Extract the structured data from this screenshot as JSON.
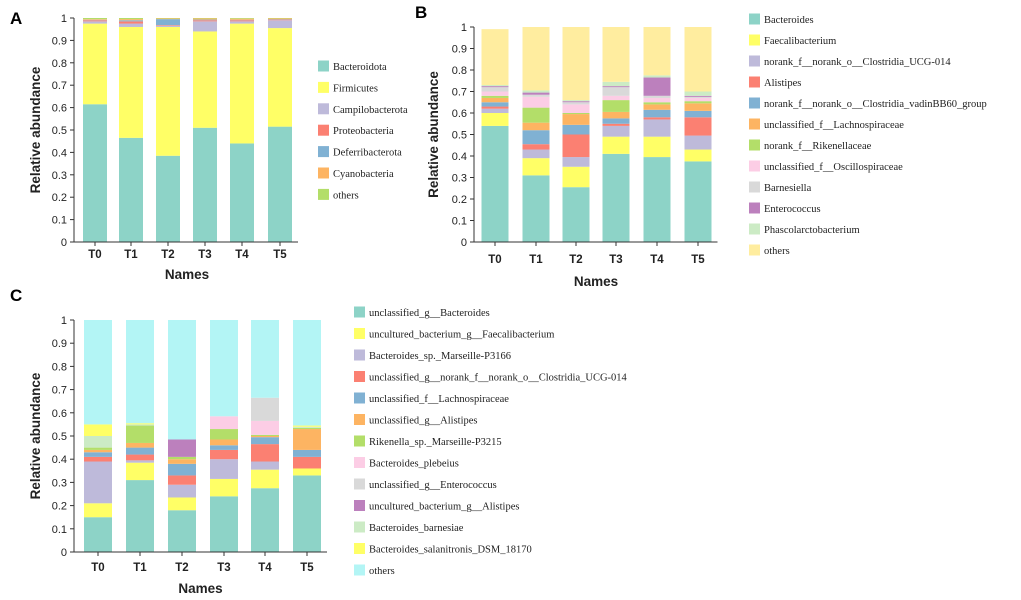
{
  "chart_data": [
    {
      "panel": "A",
      "type": "bar",
      "stacked": true,
      "categories": [
        "T0",
        "T1",
        "T2",
        "T3",
        "T4",
        "T5"
      ],
      "xlabel": "Names",
      "ylabel": "Relative abundance",
      "ylim": [
        0,
        1
      ],
      "yticks": [
        "0",
        "0.1",
        "0.2",
        "0.3",
        "0.4",
        "0.5",
        "0.6",
        "0.7",
        "0.8",
        "0.9",
        "1"
      ],
      "series": [
        {
          "name": "Bacteroidota",
          "color": "#8dd3c7",
          "values": [
            0.615,
            0.465,
            0.385,
            0.51,
            0.44,
            0.515
          ]
        },
        {
          "name": "Firmicutes",
          "color": "#ffff66",
          "values": [
            0.36,
            0.495,
            0.575,
            0.43,
            0.535,
            0.44
          ]
        },
        {
          "name": "Campilobacterota",
          "color": "#bebada",
          "values": [
            0.01,
            0.015,
            0.005,
            0.045,
            0.01,
            0.035
          ]
        },
        {
          "name": "Proteobacteria",
          "color": "#fb8072",
          "values": [
            0.005,
            0.01,
            0.003,
            0.005,
            0.005,
            0.003
          ]
        },
        {
          "name": "Deferribacterota",
          "color": "#80b1d3",
          "values": [
            0.002,
            0.005,
            0.027,
            0.003,
            0.002,
            0.002
          ]
        },
        {
          "name": "Cyanobacteria",
          "color": "#fdb462",
          "values": [
            0.003,
            0.005,
            0.003,
            0.005,
            0.005,
            0.003
          ]
        },
        {
          "name": "others",
          "color": "#b3de69",
          "values": [
            0.005,
            0.005,
            0.002,
            0.002,
            0.003,
            0.002
          ]
        }
      ]
    },
    {
      "panel": "B",
      "type": "bar",
      "stacked": true,
      "categories": [
        "T0",
        "T1",
        "T2",
        "T3",
        "T4",
        "T5"
      ],
      "xlabel": "Names",
      "ylabel": "Relative abundance",
      "ylim": [
        0,
        1
      ],
      "yticks": [
        "0",
        "0.1",
        "0.2",
        "0.3",
        "0.4",
        "0.5",
        "0.6",
        "0.7",
        "0.8",
        "0.9",
        "1"
      ],
      "series": [
        {
          "name": "Bacteroides",
          "color": "#8dd3c7",
          "values": [
            0.54,
            0.31,
            0.255,
            0.41,
            0.395,
            0.375
          ]
        },
        {
          "name": "Faecalibacterium",
          "color": "#ffff66",
          "values": [
            0.06,
            0.08,
            0.095,
            0.08,
            0.095,
            0.055
          ]
        },
        {
          "name": "norank_f__norank_o__Clostridia_UCG-014",
          "color": "#bebada",
          "values": [
            0.02,
            0.04,
            0.045,
            0.05,
            0.08,
            0.065
          ]
        },
        {
          "name": "Alistipes",
          "color": "#fb8072",
          "values": [
            0.01,
            0.025,
            0.105,
            0.01,
            0.01,
            0.085
          ]
        },
        {
          "name": "norank_f__norank_o__Clostridia_vadinBB60_group",
          "color": "#80b1d3",
          "values": [
            0.02,
            0.065,
            0.045,
            0.025,
            0.035,
            0.03
          ]
        },
        {
          "name": "unclassified_f__Lachnospiraceae",
          "color": "#fdb462",
          "values": [
            0.02,
            0.035,
            0.05,
            0.03,
            0.025,
            0.035
          ]
        },
        {
          "name": "norank_f__Rikenellaceae",
          "color": "#b3de69",
          "values": [
            0.01,
            0.07,
            0.005,
            0.055,
            0.01,
            0.01
          ]
        },
        {
          "name": "unclassified_f__Oscillospiraceae",
          "color": "#fccde5",
          "values": [
            0.02,
            0.05,
            0.04,
            0.02,
            0.02,
            0.015
          ]
        },
        {
          "name": "Barnesiella",
          "color": "#d9d9d9",
          "values": [
            0.02,
            0.01,
            0.01,
            0.04,
            0.01,
            0.005
          ]
        },
        {
          "name": "Enterococcus",
          "color": "#bc80bd",
          "values": [
            0.005,
            0.01,
            0.005,
            0.005,
            0.085,
            0.005
          ]
        },
        {
          "name": "Phascolarctobacterium",
          "color": "#ccebc5",
          "values": [
            0.005,
            0.01,
            0.005,
            0.02,
            0.01,
            0.02
          ]
        },
        {
          "name": "others",
          "color": "#ffed9f",
          "values": [
            0.26,
            0.295,
            0.34,
            0.255,
            0.225,
            0.3
          ]
        }
      ]
    },
    {
      "panel": "C",
      "type": "bar",
      "stacked": true,
      "categories": [
        "T0",
        "T1",
        "T2",
        "T3",
        "T4",
        "T5"
      ],
      "xlabel": "Names",
      "ylabel": "Relative abundance",
      "ylim": [
        0,
        1
      ],
      "yticks": [
        "0",
        "0.1",
        "0.2",
        "0.3",
        "0.4",
        "0.5",
        "0.6",
        "0.7",
        "0.8",
        "0.9",
        "1"
      ],
      "series": [
        {
          "name": "unclassified_g__Bacteroides",
          "color": "#8dd3c7",
          "values": [
            0.15,
            0.31,
            0.18,
            0.24,
            0.275,
            0.33
          ]
        },
        {
          "name": "uncultured_bacterium_g__Faecalibacterium",
          "color": "#ffff66",
          "values": [
            0.06,
            0.075,
            0.055,
            0.075,
            0.08,
            0.03
          ]
        },
        {
          "name": "Bacteroides_sp._Marseille-P3166",
          "color": "#bebada",
          "values": [
            0.18,
            0.01,
            0.055,
            0.085,
            0.035,
            0.0
          ]
        },
        {
          "name": "unclassified_g__norank_f__norank_o__Clostridia_UCG-014",
          "color": "#fb8072",
          "values": [
            0.02,
            0.025,
            0.04,
            0.04,
            0.075,
            0.05
          ]
        },
        {
          "name": "unclassified_f__Lachnospiraceae",
          "color": "#80b1d3",
          "values": [
            0.02,
            0.03,
            0.05,
            0.02,
            0.03,
            0.03
          ]
        },
        {
          "name": "unclassified_g__Alistipes",
          "color": "#fdb462",
          "values": [
            0.01,
            0.02,
            0.02,
            0.025,
            0.005,
            0.09
          ]
        },
        {
          "name": "Rikenella_sp._Marseille-P3215",
          "color": "#b3de69",
          "values": [
            0.01,
            0.075,
            0.01,
            0.045,
            0.005,
            0.005
          ]
        },
        {
          "name": "Bacteroides_plebeius",
          "color": "#fccde5",
          "values": [
            0.0,
            0.0,
            0.0,
            0.055,
            0.06,
            0.0
          ]
        },
        {
          "name": "unclassified_g__Enterococcus",
          "color": "#d9d9d9",
          "values": [
            0.0,
            0.0,
            0.0,
            0.0,
            0.1,
            0.0
          ]
        },
        {
          "name": "uncultured_bacterium_g__Alistipes",
          "color": "#bc80bd",
          "values": [
            0.0,
            0.0,
            0.075,
            0.0,
            0.0,
            0.0
          ]
        },
        {
          "name": "Bacteroides_barnesiae",
          "color": "#ccebc5",
          "values": [
            0.05,
            0.005,
            0.0,
            0.0,
            0.0,
            0.005
          ]
        },
        {
          "name": "Bacteroides_salanitronis_DSM_18170",
          "color": "#ffff66",
          "values": [
            0.05,
            0.005,
            0.0,
            0.0,
            0.0,
            0.005
          ]
        },
        {
          "name": "others",
          "color": "#b3f5f5",
          "values": [
            0.45,
            0.445,
            0.515,
            0.415,
            0.335,
            0.455
          ]
        }
      ]
    }
  ]
}
